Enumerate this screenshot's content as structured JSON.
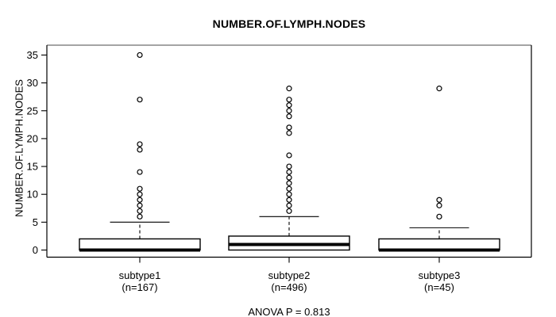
{
  "page": {
    "background": "#ffffff"
  },
  "chart_data": {
    "type": "boxplot",
    "title": "NUMBER.OF.LYMPH.NODES",
    "ylabel": "NUMBER.OF.LYMPH.NODES",
    "footer": "ANOVA P = 0.813",
    "ylim": [
      0,
      35
    ],
    "yticks": [
      0,
      5,
      10,
      15,
      20,
      25,
      30,
      35
    ],
    "grid": false,
    "colors": {
      "stroke": "#000000",
      "box_fill": "#ffffff",
      "frame_top": "#858585",
      "background": "#ffffff"
    },
    "groups": [
      {
        "label": "subtype1",
        "sublabel": "(n=167)",
        "stats": {
          "low": 0,
          "q1": 0,
          "median": 0,
          "q3": 2,
          "high": 5
        },
        "outliers": [
          6,
          7,
          8,
          9,
          10,
          11,
          14,
          18,
          19,
          27,
          35
        ]
      },
      {
        "label": "subtype2",
        "sublabel": "(n=496)",
        "stats": {
          "low": 0,
          "q1": 0,
          "median": 1,
          "q3": 2.5,
          "high": 6
        },
        "outliers": [
          7,
          8,
          9,
          10,
          11,
          12,
          13,
          14,
          15,
          17,
          21,
          22,
          24,
          25,
          26,
          27,
          29
        ]
      },
      {
        "label": "subtype3",
        "sublabel": "(n=45)",
        "stats": {
          "low": 0,
          "q1": 0,
          "median": 0,
          "q3": 2,
          "high": 4
        },
        "outliers": [
          6,
          8,
          9,
          29
        ]
      }
    ]
  }
}
